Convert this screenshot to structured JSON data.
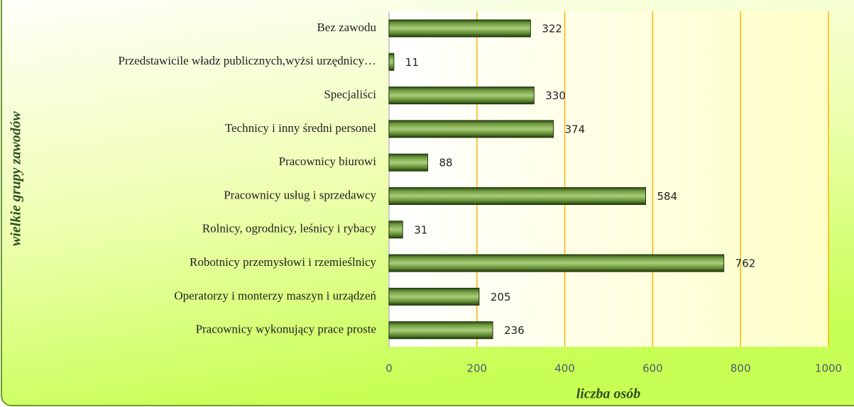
{
  "chart_data": {
    "type": "bar",
    "orientation": "horizontal",
    "categories": [
      "Bez zawodu",
      "Przedstawicile władz publicznych,wyżsi urzędnicy…",
      "Specjaliści",
      "Technicy i inny średni personel",
      "Pracownicy biurowi",
      "Pracownicy usług  i sprzedawcy",
      "Rolnicy, ogrodnicy, leśnicy i rybacy",
      "Robotnicy przemysłowi i rzemieślnicy",
      "Operatorzy i monterzy maszyn i urządzeń",
      "Pracownicy wykonujący prace proste"
    ],
    "values": [
      322,
      11,
      330,
      374,
      88,
      584,
      31,
      762,
      205,
      236
    ],
    "color": "#4f7a28",
    "xlim": [
      0,
      1000
    ],
    "xticks": [
      0,
      200,
      400,
      600,
      800,
      1000
    ],
    "grid": true,
    "xlabel": "liczba osób",
    "ylabel": "wielkie grupy zawodów"
  }
}
